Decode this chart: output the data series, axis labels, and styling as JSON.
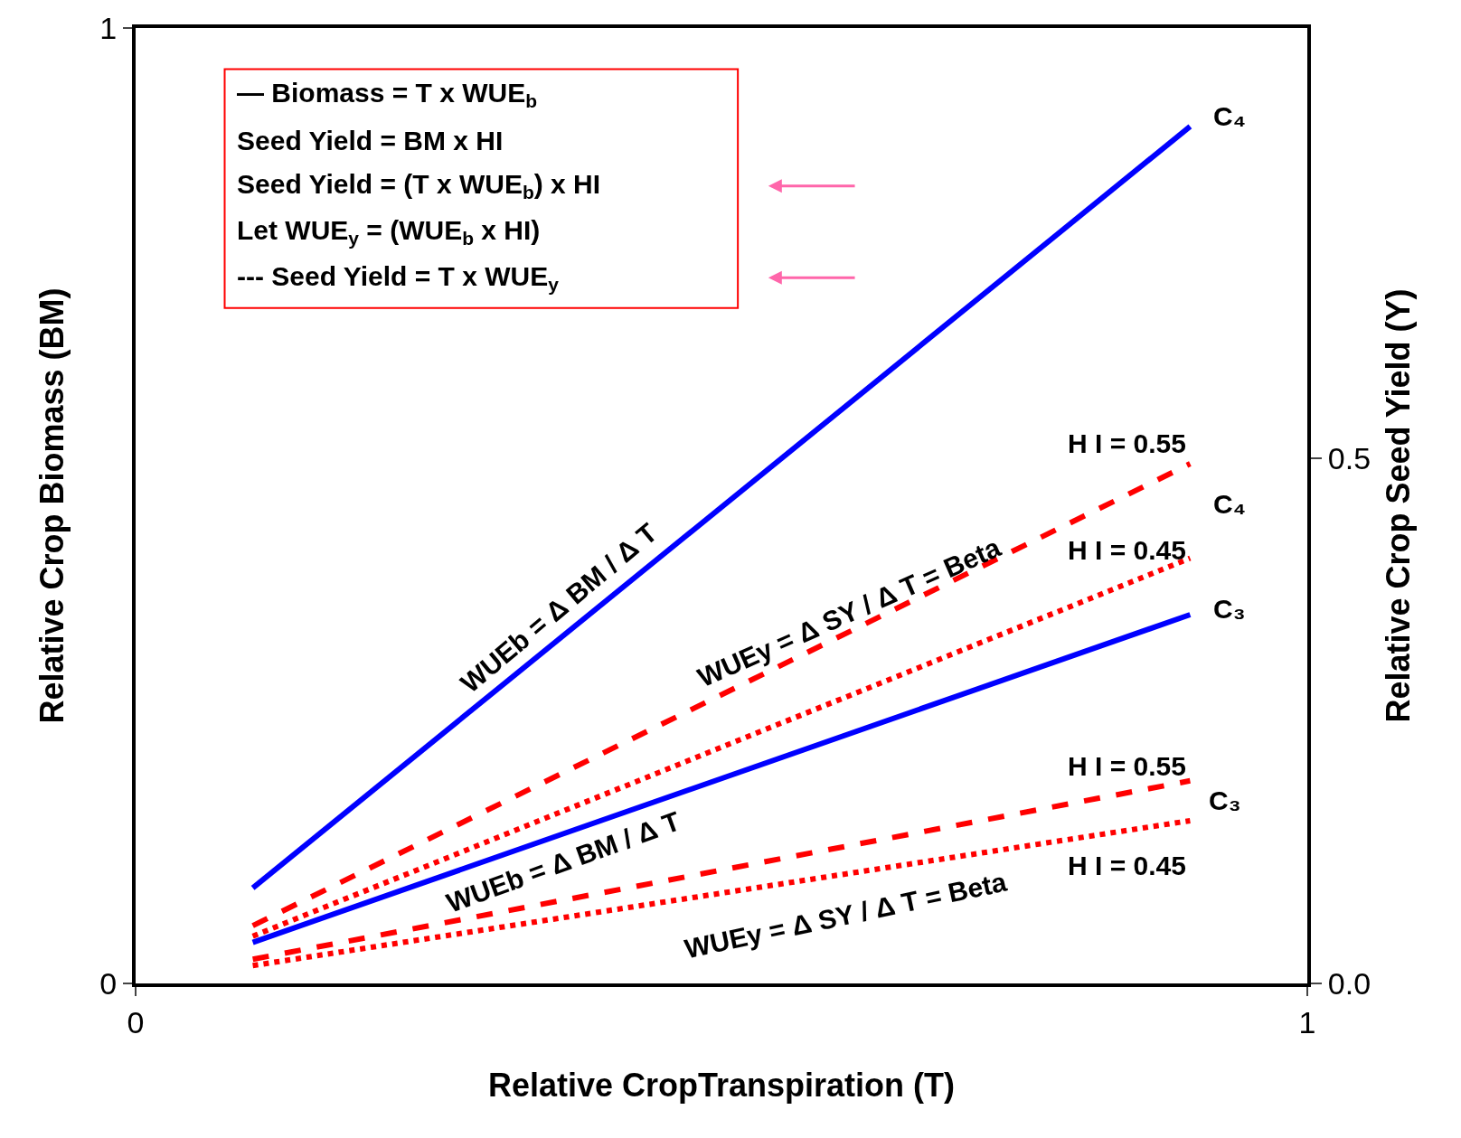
{
  "chart_data": {
    "type": "line",
    "xlabel": "Relative CropTranspiration (T)",
    "ylabel": "Relative Crop Biomass (BM)",
    "y2label": "Relative Crop Seed Yield (Y)",
    "x": [
      0.1,
      0.9
    ],
    "series": [
      {
        "color": "#0000ff",
        "values": [
          0.1,
          0.897
        ],
        "line_style": "solid"
      },
      {
        "color": "#0000ff",
        "values": [
          0.043,
          0.386
        ],
        "line_style": "solid"
      },
      {
        "color": "#ff0000",
        "values": [
          0.055,
          0.495
        ],
        "line_style": "dashed",
        "axis": "y2"
      },
      {
        "color": "#ff0000",
        "values": [
          0.045,
          0.405
        ],
        "line_style": "dotted",
        "axis": "y2"
      },
      {
        "color": "#ff0000",
        "values": [
          0.023,
          0.193
        ],
        "line_style": "dashed",
        "axis": "y2"
      },
      {
        "color": "#ff0000",
        "values": [
          0.017,
          0.155
        ],
        "line_style": "dotted",
        "axis": "y2"
      }
    ],
    "xlim": [
      0,
      1
    ],
    "xticks": [
      0,
      1
    ],
    "ylim": [
      0,
      1
    ],
    "yticks": [
      0,
      1
    ],
    "y2lim": [
      0,
      0.91
    ],
    "y2ticks": [
      {
        "value": 0,
        "label": "0.0"
      },
      0.5
    ],
    "annotations": [
      "— Biomass = T x WUE$_{b}$",
      "Seed Yield = BM x HI",
      "Seed Yield = (T x WUE$_{b}$) x HI",
      "Let WUE$_{y}$ = (WUE$_{b}$ x HI)",
      "--- Seed Yield = T x WUE$_{y}$",
      "C₄",
      "C₄",
      "C₃",
      "C₃",
      "H I = 0.55",
      "H I = 0.45",
      "H I = 0.55",
      "H I = 0.45",
      "WUEb = Δ BM / Δ T",
      "WUEb = Δ BM / Δ T",
      "WUEy = Δ SY / Δ T = Beta",
      "WUEy = Δ SY / Δ T = Beta"
    ]
  }
}
